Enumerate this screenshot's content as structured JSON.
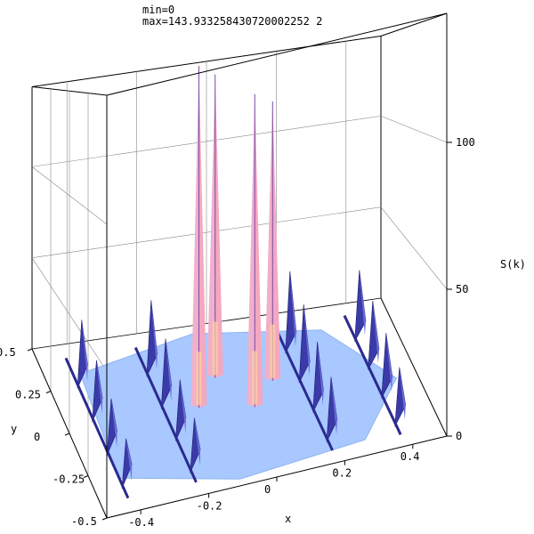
{
  "header": {
    "min_line": "min=0",
    "max_line": "max=143.933258430720002252 2"
  },
  "chart_data": {
    "type": "surface3d",
    "title": "",
    "xlabel": "x",
    "ylabel": "y",
    "zlabel": "S(k)",
    "xlim": [
      -0.5,
      0.5
    ],
    "ylim": [
      -0.5,
      0.5
    ],
    "zlim": [
      0,
      143.93
    ],
    "x_ticks": [
      "-0.4",
      "-0.2",
      "0",
      "0.2",
      "0.4"
    ],
    "y_ticks": [
      "0.5",
      "0.25",
      "0",
      "-0.25",
      "-0.5"
    ],
    "z_ticks": [
      "0",
      "50",
      "100"
    ],
    "base_color": "#a8c8ff",
    "peak_color": "#f4a8c0",
    "ridge_color": "#3a3aa8",
    "peaks": [
      {
        "x": -0.12,
        "y": 0.02,
        "height": 143.9
      },
      {
        "x": -0.04,
        "y": 0.18,
        "height": 138
      },
      {
        "x": 0.03,
        "y": -0.04,
        "height": 128
      },
      {
        "x": 0.11,
        "y": 0.1,
        "height": 122
      }
    ],
    "ridges": [
      {
        "x": -0.4,
        "heights": [
          28,
          22,
          18,
          14
        ]
      },
      {
        "x": -0.2,
        "heights": [
          32,
          26,
          20,
          16
        ]
      },
      {
        "x": 0.2,
        "heights": [
          35,
          30,
          24,
          20
        ]
      },
      {
        "x": 0.4,
        "heights": [
          30,
          26,
          22,
          18
        ]
      }
    ]
  }
}
